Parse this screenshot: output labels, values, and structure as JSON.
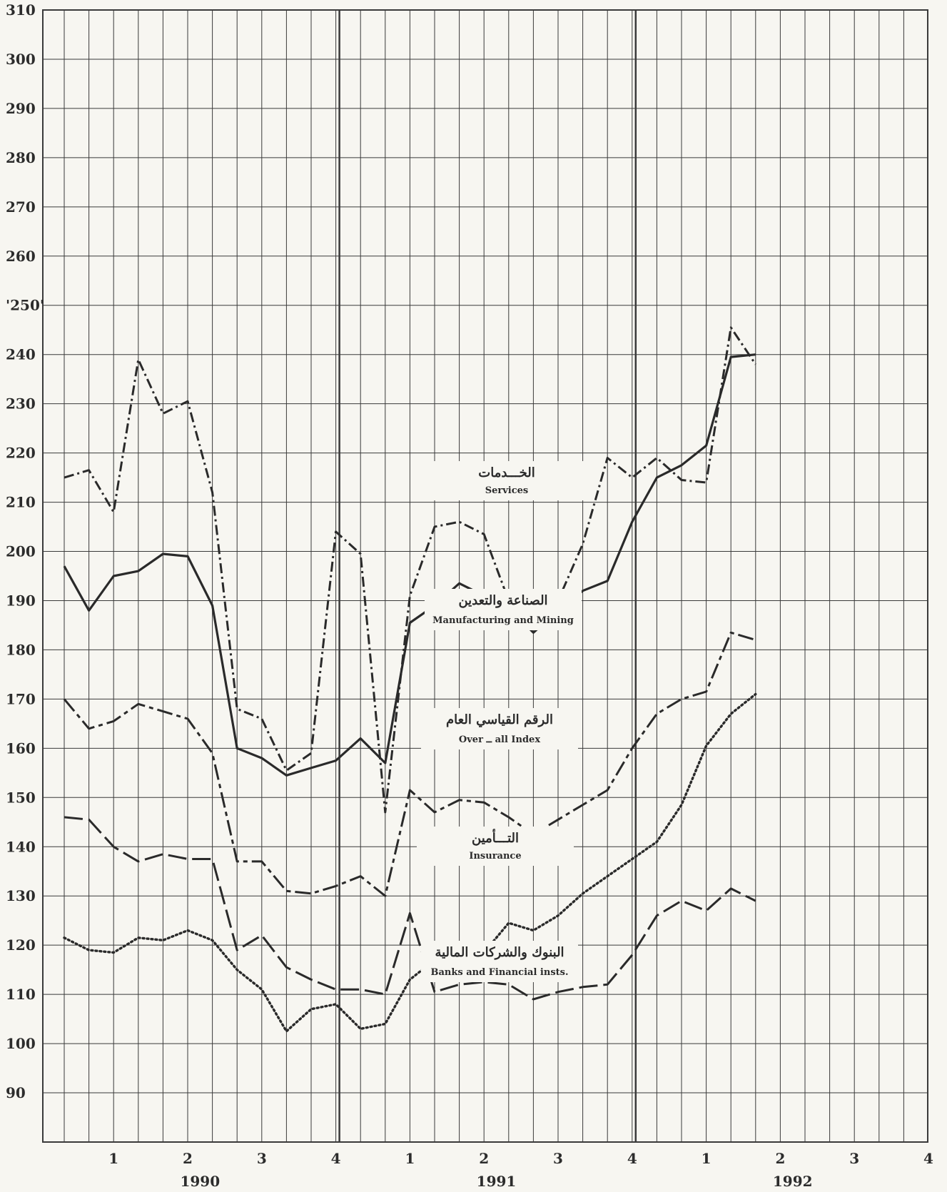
{
  "chart_data": {
    "type": "line",
    "x": [
      "1990-1a",
      "1990-1b",
      "1990-1",
      "1990-2a",
      "1990-2b",
      "1990-2",
      "1990-3a",
      "1990-3b",
      "1990-3",
      "1990-4a",
      "1990-4b",
      "1990-4",
      "1991-1a",
      "1991-1b",
      "1991-1",
      "1991-2a",
      "1991-2b",
      "1991-2",
      "1991-3a",
      "1991-3b",
      "1991-3",
      "1991-4a",
      "1991-4b",
      "1991-4",
      "1992-1a",
      "1992-1b",
      "1992-1",
      "1992-2a",
      "1992-2b"
    ],
    "x_tick_labels": [
      "1",
      "2",
      "3",
      "4",
      "1",
      "2",
      "3",
      "4",
      "1",
      "2",
      "3",
      "4"
    ],
    "year_labels": [
      "1990",
      "1991",
      "1992"
    ],
    "y_tick_labels": [
      "310",
      "300",
      "290",
      "280",
      "270",
      "260",
      "'250'",
      "240",
      "230",
      "220",
      "210",
      "200",
      "190",
      "180",
      "170",
      "160",
      "150",
      "140",
      "130",
      "120",
      "110",
      "100",
      "90"
    ],
    "ylim": [
      80,
      310
    ],
    "grid": true,
    "series": [
      {
        "label_ar": "الخـــدمات",
        "label_en": "Services",
        "style": "dash-dot",
        "values": [
          215,
          216.5,
          208,
          239,
          228,
          230.5,
          212,
          168,
          166,
          155.5,
          159,
          204,
          199.5,
          147,
          191,
          205,
          206,
          203.5,
          190,
          185,
          190,
          201.5,
          219,
          215,
          219,
          214.5,
          214,
          245.5,
          238
        ]
      },
      {
        "label_ar": "الصناعة والتعدين",
        "label_en": "Manufacturing and Mining",
        "style": "solid",
        "values": [
          197,
          188,
          195,
          196,
          199.5,
          199,
          189,
          160,
          158,
          154.5,
          156,
          157.5,
          162,
          157,
          185.5,
          189,
          193.5,
          191,
          188.5,
          183.5,
          188,
          192,
          194,
          206,
          215,
          217.5,
          221.5,
          239.5,
          240
        ]
      },
      {
        "label_ar": "الرقم القياسي العام",
        "label_en": "Over ــ all Index",
        "style": "long-short-dash",
        "values": [
          170,
          164,
          165.5,
          169,
          167.5,
          166,
          159,
          137,
          137,
          131,
          130.5,
          132,
          134,
          130,
          151.5,
          147,
          149.5,
          149,
          146,
          142.5,
          145.5,
          148.5,
          151.5,
          160,
          167,
          170,
          171.5,
          183.5,
          182
        ]
      },
      {
        "label_ar": "التـــأمين",
        "label_en": "Insurance",
        "style": "dotted",
        "values": [
          121.5,
          119,
          118.5,
          121.5,
          121,
          123,
          121,
          115,
          111,
          102.5,
          107,
          108,
          103,
          104,
          113,
          117,
          118.5,
          118.5,
          124.5,
          123,
          126,
          130.5,
          134,
          137.5,
          141,
          148.5,
          160.5,
          167,
          171
        ]
      },
      {
        "label_ar": "البنوك والشركات المالية",
        "label_en": "Banks and Financial insts.",
        "style": "long-dash",
        "values": [
          146,
          145.5,
          140,
          137,
          138.5,
          137.5,
          137.5,
          119,
          122,
          115.5,
          113,
          111,
          111,
          110,
          126.5,
          110.5,
          112,
          112.5,
          112,
          109,
          110.5,
          111.5,
          112,
          118,
          126,
          129,
          127,
          131.5,
          129
        ]
      }
    ]
  },
  "colors": {
    "background": "#f7f6f1",
    "grid": "#3a3a3a",
    "line": "#2a2a2a",
    "text": "#2c2c2c"
  }
}
